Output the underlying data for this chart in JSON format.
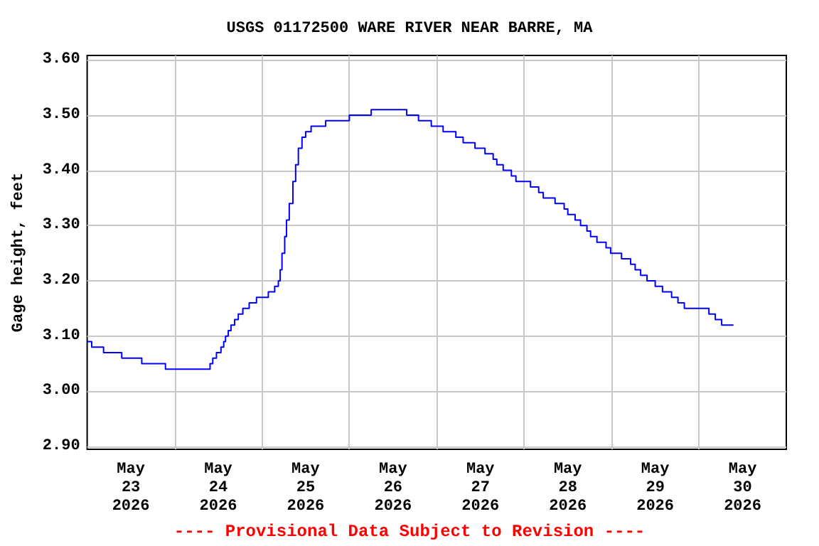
{
  "chart_data": {
    "type": "step",
    "title": "USGS 01172500 WARE RIVER NEAR BARRE, MA",
    "ylabel": "Gage height, feet",
    "annotations": [
      "---- Provisional Data Subject to Revision ----"
    ],
    "x": [
      "2026-05-23T00:00",
      "2026-05-23T01:15",
      "2026-05-23T04:30",
      "2026-05-23T09:30",
      "2026-05-23T15:00",
      "2026-05-23T21:30",
      "2026-05-24T09:45",
      "2026-05-24T10:30",
      "2026-05-24T11:30",
      "2026-05-24T12:45",
      "2026-05-24T13:30",
      "2026-05-24T14:00",
      "2026-05-24T14:45",
      "2026-05-24T15:30",
      "2026-05-24T16:30",
      "2026-05-24T17:30",
      "2026-05-24T18:45",
      "2026-05-24T20:30",
      "2026-05-24T22:30",
      "2026-05-25T01:45",
      "2026-05-25T03:30",
      "2026-05-25T04:30",
      "2026-05-25T05:00",
      "2026-05-25T05:30",
      "2026-05-25T06:15",
      "2026-05-25T06:45",
      "2026-05-25T07:30",
      "2026-05-25T08:30",
      "2026-05-25T09:15",
      "2026-05-25T10:00",
      "2026-05-25T11:00",
      "2026-05-25T12:00",
      "2026-05-25T13:30",
      "2026-05-25T17:30",
      "2026-05-26T00:00",
      "2026-05-26T06:00",
      "2026-05-26T15:45",
      "2026-05-26T19:00",
      "2026-05-26T22:30",
      "2026-05-27T01:45",
      "2026-05-27T05:15",
      "2026-05-27T07:15",
      "2026-05-27T10:30",
      "2026-05-27T13:15",
      "2026-05-27T15:30",
      "2026-05-27T16:30",
      "2026-05-27T18:15",
      "2026-05-27T20:30",
      "2026-05-27T21:45",
      "2026-05-28T01:45",
      "2026-05-28T04:00",
      "2026-05-28T05:15",
      "2026-05-28T08:30",
      "2026-05-28T11:00",
      "2026-05-28T12:00",
      "2026-05-28T14:00",
      "2026-05-28T15:30",
      "2026-05-28T17:15",
      "2026-05-28T18:15",
      "2026-05-28T20:00",
      "2026-05-28T22:30",
      "2026-05-28T23:45",
      "2026-05-29T02:45",
      "2026-05-29T05:15",
      "2026-05-29T06:30",
      "2026-05-29T08:00",
      "2026-05-29T09:45",
      "2026-05-29T12:00",
      "2026-05-29T14:00",
      "2026-05-29T16:30",
      "2026-05-29T18:15",
      "2026-05-29T20:00",
      "2026-05-30T02:45",
      "2026-05-30T04:30",
      "2026-05-30T06:15",
      "2026-05-30T09:30"
    ],
    "series": [
      {
        "color": "#0000ff",
        "values": [
          3.09,
          3.08,
          3.07,
          3.06,
          3.05,
          3.04,
          3.05,
          3.06,
          3.07,
          3.08,
          3.09,
          3.1,
          3.11,
          3.12,
          3.13,
          3.14,
          3.15,
          3.16,
          3.17,
          3.18,
          3.19,
          3.2,
          3.22,
          3.25,
          3.28,
          3.31,
          3.34,
          3.38,
          3.41,
          3.44,
          3.46,
          3.47,
          3.48,
          3.49,
          3.5,
          3.51,
          3.5,
          3.49,
          3.48,
          3.47,
          3.46,
          3.45,
          3.44,
          3.43,
          3.42,
          3.41,
          3.4,
          3.39,
          3.38,
          3.37,
          3.36,
          3.35,
          3.34,
          3.33,
          3.32,
          3.31,
          3.3,
          3.29,
          3.28,
          3.27,
          3.26,
          3.25,
          3.24,
          3.23,
          3.22,
          3.21,
          3.2,
          3.19,
          3.18,
          3.17,
          3.16,
          3.15,
          3.14,
          3.13,
          3.12,
          3.12
        ]
      }
    ],
    "xlim": [
      "2026-05-23T00:00",
      "2026-05-31T00:00"
    ],
    "xticks": [
      {
        "value": "2026-05-23T12:00",
        "label": "May\n23\n2026"
      },
      {
        "value": "2026-05-24T12:00",
        "label": "May\n24\n2026"
      },
      {
        "value": "2026-05-25T12:00",
        "label": "May\n25\n2026"
      },
      {
        "value": "2026-05-26T12:00",
        "label": "May\n26\n2026"
      },
      {
        "value": "2026-05-27T12:00",
        "label": "May\n27\n2026"
      },
      {
        "value": "2026-05-28T12:00",
        "label": "May\n28\n2026"
      },
      {
        "value": "2026-05-29T12:00",
        "label": "May\n29\n2026"
      },
      {
        "value": "2026-05-30T12:00",
        "label": "May\n30\n2026"
      },
      {
        "value": "2026-05-24T00:00",
        "label": null
      },
      {
        "value": "2026-05-25T00:00",
        "label": null
      },
      {
        "value": "2026-05-26T00:00",
        "label": null
      },
      {
        "value": "2026-05-27T00:00",
        "label": null
      },
      {
        "value": "2026-05-28T00:00",
        "label": null
      },
      {
        "value": "2026-05-29T00:00",
        "label": null
      },
      {
        "value": "2026-05-30T00:00",
        "label": null
      }
    ],
    "ylim": [
      2.895,
      3.608
    ],
    "yticks": [
      {
        "value": 2.9,
        "label": "2.90"
      },
      {
        "value": 3.0,
        "label": "3.00"
      },
      {
        "value": 3.1,
        "label": "3.10"
      },
      {
        "value": 3.2,
        "label": "3.20"
      },
      {
        "value": 3.3,
        "label": "3.30"
      },
      {
        "value": 3.4,
        "label": "3.40"
      },
      {
        "value": 3.5,
        "label": "3.50"
      },
      {
        "value": 3.6,
        "label": "3.60"
      }
    ],
    "grid": true,
    "marker": "none",
    "line_style": "solid"
  }
}
